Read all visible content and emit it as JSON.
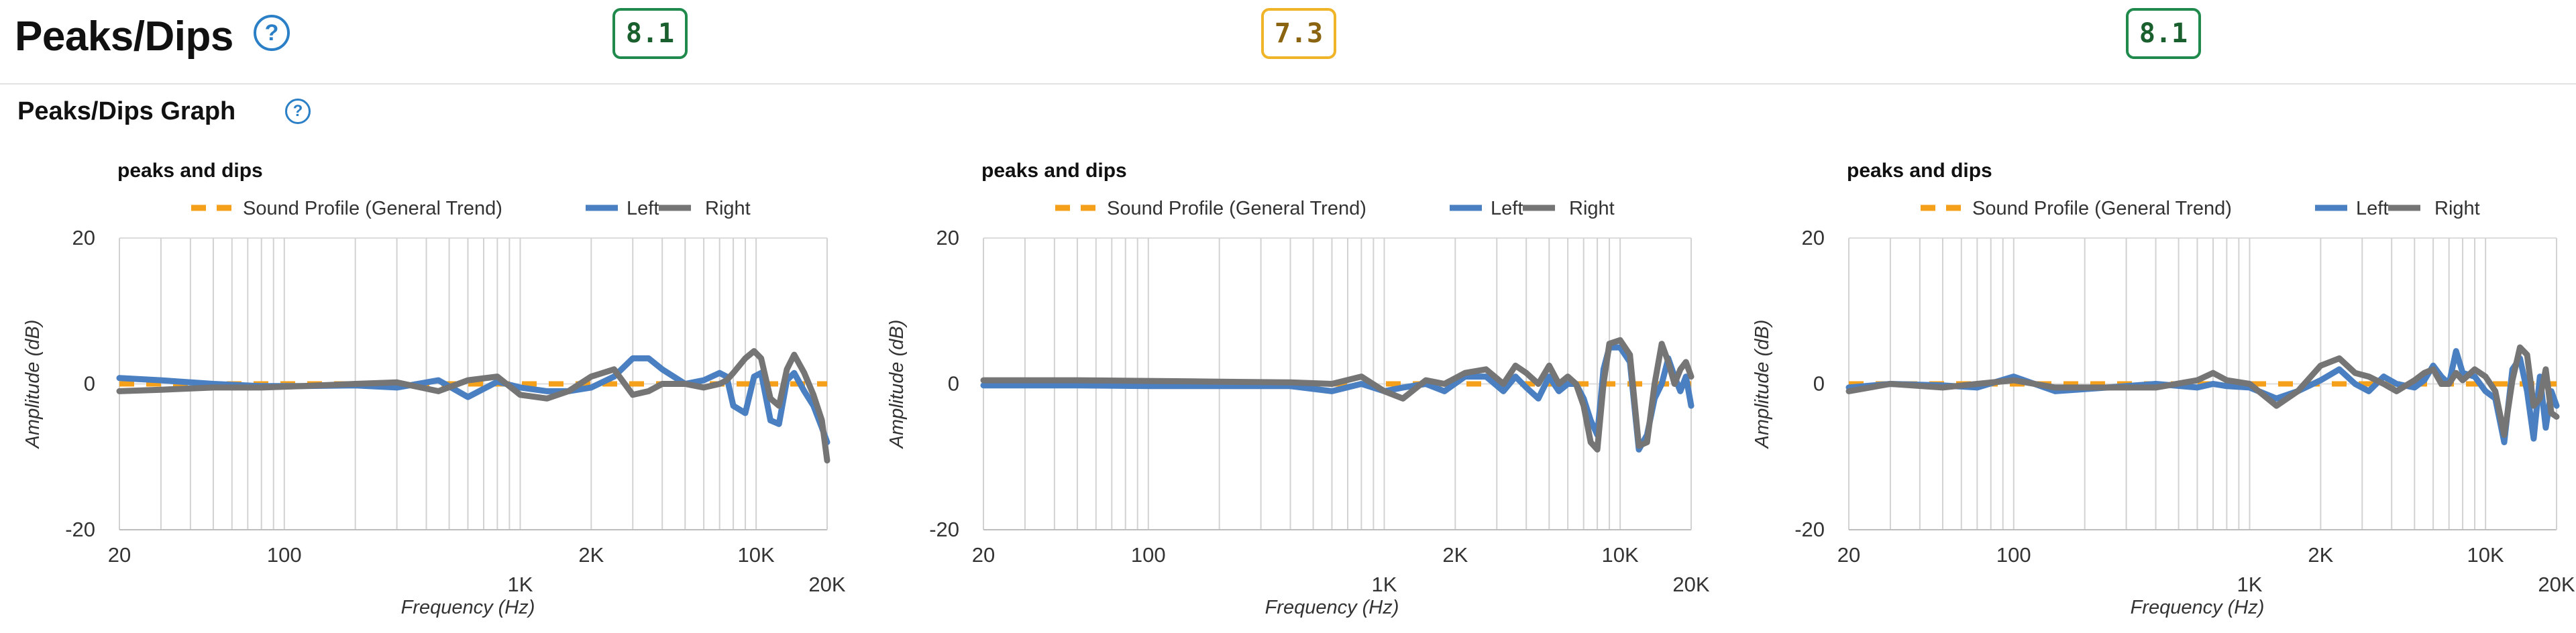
{
  "header": {
    "title": "Peaks/Dips",
    "help_icon": "question-circle-icon",
    "scores": [
      {
        "value": "8.1",
        "color": "#1f8a4c",
        "text_color": "#1a5f2e"
      },
      {
        "value": "7.3",
        "color": "#f0b429",
        "text_color": "#8a6410"
      },
      {
        "value": "8.1",
        "color": "#1f8a4c",
        "text_color": "#1a5f2e"
      }
    ]
  },
  "section": {
    "title": "Peaks/Dips Graph",
    "help_icon": "question-circle-icon"
  },
  "chart_data": [
    {
      "type": "line",
      "title": "peaks and dips",
      "xlabel": "Frequency (Hz)",
      "ylabel": "Amplitude (dB)",
      "x_scale": "log",
      "xlim": [
        20,
        20000
      ],
      "ylim": [
        -20,
        20
      ],
      "yticks": [
        "20",
        "0",
        "-20"
      ],
      "xticks": [
        {
          "value": 20,
          "label": "20",
          "row": 0
        },
        {
          "value": 100,
          "label": "100",
          "row": 0
        },
        {
          "value": 1000,
          "label": "1K",
          "row": 1
        },
        {
          "value": 2000,
          "label": "2K",
          "row": 0
        },
        {
          "value": 10000,
          "label": "10K",
          "row": 0
        },
        {
          "value": 20000,
          "label": "20K",
          "row": 1
        }
      ],
      "grid": true,
      "legend_position": "top",
      "series": [
        {
          "name": "Sound Profile (General Trend)",
          "color": "#f5a01a",
          "dashed": true,
          "x": [
            20,
            20000
          ],
          "y": [
            0,
            0
          ]
        },
        {
          "name": "Left",
          "color": "#4a7fc1",
          "dashed": false,
          "x": [
            20,
            30,
            50,
            80,
            120,
            200,
            300,
            450,
            600,
            800,
            1000,
            1300,
            1600,
            2000,
            2500,
            3000,
            3500,
            4000,
            5000,
            6000,
            7000,
            7500,
            8000,
            9000,
            9800,
            10500,
            11500,
            12500,
            13500,
            14500,
            16000,
            17500,
            19000,
            20000
          ],
          "y": [
            0.8,
            0.5,
            0.0,
            -0.3,
            -0.3,
            -0.2,
            -0.5,
            0.5,
            -1.8,
            0.3,
            -0.5,
            -1.0,
            -1.0,
            -0.5,
            1.0,
            3.5,
            3.5,
            2.0,
            0.0,
            0.5,
            1.5,
            1.0,
            -3.0,
            -4.0,
            1.0,
            1.5,
            -5.0,
            -5.5,
            0.5,
            1.5,
            -1.0,
            -3.0,
            -6.0,
            -8.0
          ]
        },
        {
          "name": "Right",
          "color": "#757575",
          "dashed": false,
          "x": [
            20,
            30,
            50,
            80,
            120,
            200,
            300,
            450,
            600,
            800,
            1000,
            1300,
            1600,
            2000,
            2500,
            3000,
            3500,
            4000,
            5000,
            6000,
            7000,
            7500,
            8000,
            9000,
            9800,
            10500,
            11500,
            12500,
            13500,
            14500,
            16000,
            17500,
            19000,
            20000
          ],
          "y": [
            -1.0,
            -0.8,
            -0.5,
            -0.5,
            -0.3,
            0.0,
            0.2,
            -1.0,
            0.5,
            1.0,
            -1.5,
            -2.0,
            -1.0,
            1.0,
            2.0,
            -1.5,
            -1.0,
            0.0,
            0.0,
            -0.5,
            0.0,
            0.5,
            1.5,
            3.5,
            4.5,
            3.5,
            -2.0,
            -3.0,
            2.0,
            4.0,
            1.5,
            -1.5,
            -5.0,
            -10.5
          ]
        }
      ]
    },
    {
      "type": "line",
      "title": "peaks and dips",
      "xlabel": "Frequency (Hz)",
      "ylabel": "Amplitude (dB)",
      "x_scale": "log",
      "xlim": [
        20,
        20000
      ],
      "ylim": [
        -20,
        20
      ],
      "yticks": [
        "20",
        "0",
        "-20"
      ],
      "xticks": [
        {
          "value": 20,
          "label": "20",
          "row": 0
        },
        {
          "value": 100,
          "label": "100",
          "row": 0
        },
        {
          "value": 1000,
          "label": "1K",
          "row": 1
        },
        {
          "value": 2000,
          "label": "2K",
          "row": 0
        },
        {
          "value": 10000,
          "label": "10K",
          "row": 0
        },
        {
          "value": 20000,
          "label": "20K",
          "row": 1
        }
      ],
      "grid": true,
      "legend_position": "top",
      "series": [
        {
          "name": "Sound Profile (General Trend)",
          "color": "#f5a01a",
          "dashed": true,
          "x": [
            20,
            20000
          ],
          "y": [
            0,
            0
          ]
        },
        {
          "name": "Left",
          "color": "#4a7fc1",
          "dashed": false,
          "x": [
            20,
            50,
            100,
            200,
            400,
            600,
            800,
            1000,
            1200,
            1500,
            1800,
            2200,
            2700,
            3200,
            3600,
            4000,
            4500,
            5000,
            5500,
            6000,
            6500,
            7000,
            7500,
            8000,
            8500,
            9000,
            10000,
            11000,
            12000,
            13000,
            14000,
            15000,
            16000,
            17000,
            18000,
            19000,
            20000
          ],
          "y": [
            -0.2,
            -0.2,
            -0.3,
            -0.3,
            -0.3,
            -1.0,
            0.0,
            -1.0,
            -0.5,
            0.0,
            -1.0,
            1.0,
            1.0,
            -1.0,
            1.0,
            -0.5,
            -2.0,
            1.0,
            -1.0,
            0.0,
            0.0,
            -2.0,
            -5.0,
            -7.0,
            2.0,
            5.0,
            5.0,
            3.0,
            -9.0,
            -7.0,
            -2.0,
            0.0,
            3.5,
            1.0,
            -1.0,
            1.0,
            -3.0
          ]
        },
        {
          "name": "Right",
          "color": "#757575",
          "dashed": false,
          "x": [
            20,
            50,
            100,
            200,
            400,
            600,
            800,
            1000,
            1200,
            1500,
            1800,
            2200,
            2700,
            3200,
            3600,
            4000,
            4500,
            5000,
            5500,
            6000,
            6500,
            7000,
            7500,
            8000,
            8500,
            9000,
            10000,
            11000,
            12000,
            13000,
            14000,
            15000,
            16000,
            17000,
            18000,
            19000,
            20000
          ],
          "y": [
            0.5,
            0.5,
            0.4,
            0.3,
            0.2,
            0.0,
            1.0,
            -1.0,
            -2.0,
            0.5,
            0.0,
            1.5,
            2.0,
            0.0,
            2.5,
            1.5,
            0.0,
            2.5,
            0.0,
            1.0,
            0.0,
            -3.0,
            -8.0,
            -9.0,
            0.0,
            5.5,
            6.0,
            4.0,
            -8.5,
            -8.0,
            0.0,
            5.5,
            3.0,
            0.0,
            2.0,
            3.0,
            1.0
          ]
        }
      ]
    },
    {
      "type": "line",
      "title": "peaks and dips",
      "xlabel": "Frequency (Hz)",
      "ylabel": "Amplitude (dB)",
      "x_scale": "log",
      "xlim": [
        20,
        20000
      ],
      "ylim": [
        -20,
        20
      ],
      "yticks": [
        "20",
        "0",
        "-20"
      ],
      "xticks": [
        {
          "value": 20,
          "label": "20",
          "row": 0
        },
        {
          "value": 100,
          "label": "100",
          "row": 0
        },
        {
          "value": 1000,
          "label": "1K",
          "row": 1
        },
        {
          "value": 2000,
          "label": "2K",
          "row": 0
        },
        {
          "value": 10000,
          "label": "10K",
          "row": 0
        },
        {
          "value": 20000,
          "label": "20K",
          "row": 1
        }
      ],
      "grid": true,
      "legend_position": "top",
      "series": [
        {
          "name": "Sound Profile (General Trend)",
          "color": "#f5a01a",
          "dashed": true,
          "x": [
            20,
            20000
          ],
          "y": [
            0,
            0
          ]
        },
        {
          "name": "Left",
          "color": "#4a7fc1",
          "dashed": false,
          "x": [
            20,
            30,
            50,
            70,
            100,
            150,
            250,
            400,
            600,
            700,
            800,
            1000,
            1300,
            1600,
            2000,
            2400,
            2800,
            3200,
            3700,
            4200,
            5000,
            5500,
            6000,
            6500,
            7000,
            7500,
            8000,
            9000,
            10000,
            11000,
            12000,
            13000,
            14000,
            15000,
            16000,
            17000,
            18000,
            19000,
            20000
          ],
          "y": [
            -0.5,
            0.0,
            -0.2,
            -0.5,
            1.0,
            -1.0,
            -0.5,
            0.0,
            -0.5,
            0.0,
            -0.3,
            -0.5,
            -2.0,
            -1.0,
            0.5,
            2.0,
            0.0,
            -1.0,
            1.0,
            0.0,
            -0.5,
            0.5,
            2.5,
            1.0,
            0.0,
            4.5,
            1.5,
            1.0,
            -1.0,
            -2.0,
            -8.0,
            2.0,
            3.5,
            -1.0,
            -7.5,
            1.0,
            -6.0,
            -1.0,
            -3.0
          ]
        },
        {
          "name": "Right",
          "color": "#757575",
          "dashed": false,
          "x": [
            20,
            30,
            50,
            70,
            100,
            150,
            250,
            400,
            600,
            700,
            800,
            1000,
            1300,
            1600,
            2000,
            2400,
            2800,
            3200,
            3700,
            4200,
            5000,
            5500,
            6000,
            6500,
            7000,
            7500,
            8000,
            9000,
            10000,
            11000,
            12000,
            13000,
            14000,
            15000,
            16000,
            17000,
            18000,
            19000,
            20000
          ],
          "y": [
            -1.0,
            0.0,
            -0.5,
            0.0,
            0.5,
            -0.5,
            -0.5,
            -0.5,
            0.5,
            1.5,
            0.5,
            0.0,
            -3.0,
            -1.0,
            2.5,
            3.5,
            1.5,
            1.0,
            0.0,
            -1.0,
            0.5,
            1.5,
            2.0,
            0.0,
            0.0,
            1.5,
            0.5,
            2.0,
            1.0,
            -1.0,
            -7.0,
            0.5,
            5.0,
            4.0,
            -3.0,
            -2.0,
            2.0,
            -4.0,
            -4.5
          ]
        }
      ]
    }
  ]
}
